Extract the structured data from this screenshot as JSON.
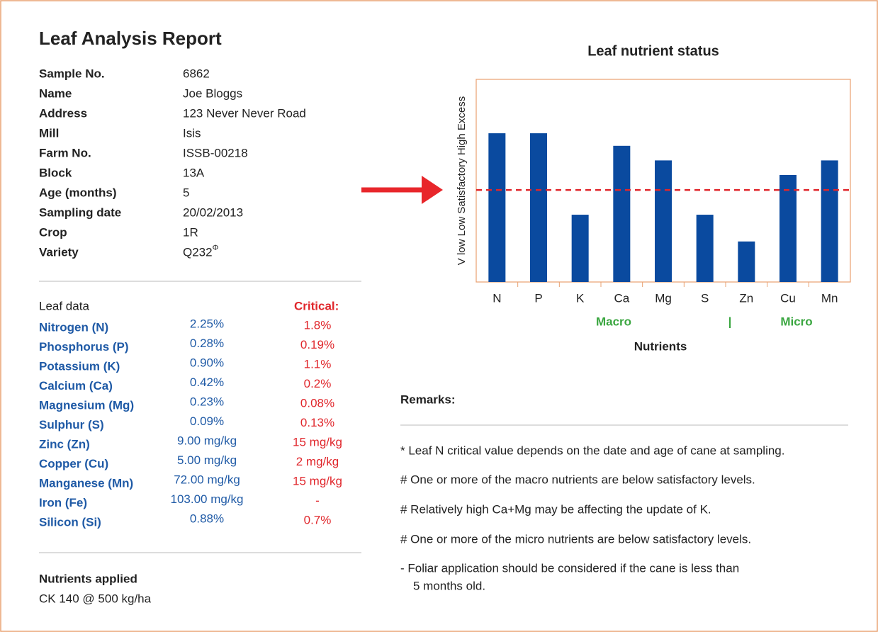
{
  "header": {
    "title": "Leaf Analysis Report"
  },
  "sample": [
    {
      "label": "Sample No.",
      "value": "6862"
    },
    {
      "label": "Name",
      "value": "Joe Bloggs"
    },
    {
      "label": "Address",
      "value": "123 Never Never Road"
    },
    {
      "label": "Mill",
      "value": "Isis"
    },
    {
      "label": "Farm No.",
      "value": "ISSB-00218"
    },
    {
      "label": "Block",
      "value": "13A"
    },
    {
      "label": "Age (months)",
      "value": "5"
    },
    {
      "label": "Sampling date",
      "value": "20/02/2013"
    },
    {
      "label": "Crop",
      "value": "1R"
    },
    {
      "label": "Variety",
      "value": "Q232",
      "superscript": "Φ"
    }
  ],
  "leaf_data": {
    "heading": "Leaf data",
    "critical_heading": "Critical:",
    "rows": [
      [
        "Nitrogen (N)",
        "2.25%",
        "1.8%"
      ],
      [
        "Phosphorus (P)",
        "0.28%",
        "0.19%"
      ],
      [
        "Potassium (K)",
        "0.90%",
        "1.1%"
      ],
      [
        "Calcium (Ca)",
        "0.42%",
        "0.2%"
      ],
      [
        "Magnesium (Mg)",
        "0.23%",
        "0.08%"
      ],
      [
        "Sulphur (S)",
        "0.09%",
        "0.13%"
      ],
      [
        "Zinc (Zn)",
        "9.00 mg/kg",
        "15 mg/kg"
      ],
      [
        "Copper (Cu)",
        "5.00 mg/kg",
        "2 mg/kg"
      ],
      [
        "Manganese (Mn)",
        "72.00 mg/kg",
        "15 mg/kg"
      ],
      [
        "Iron (Fe)",
        "103.00 mg/kg",
        "-"
      ],
      [
        "Silicon (Si)",
        "0.88%",
        "0.7%"
      ]
    ]
  },
  "nutrients_applied": {
    "heading": "Nutrients applied",
    "text": "CK 140 @ 500 kg/ha"
  },
  "remarks": {
    "heading": "Remarks:",
    "items": [
      "* Leaf N critical value depends on the date and age of cane at sampling.",
      "# One or more of the macro nutrients are below satisfactory levels.",
      "# Relatively high Ca+Mg may be affecting the update of K.",
      "# One or more of the micro nutrients are below satisfactory levels.",
      "- Foliar application should be considered if the cane is less than",
      "5 months old."
    ]
  },
  "chart_data": {
    "type": "bar",
    "title": "Leaf nutrient status",
    "y_label": "V low Low Satisfactory High Excess",
    "x_label": "Nutrients",
    "groups": [
      "Macro",
      "|",
      "Micro"
    ],
    "categories": [
      "N",
      "P",
      "K",
      "Ca",
      "Mg",
      "S",
      "Zn",
      "Cu",
      "Mn"
    ],
    "values": [
      3.67,
      3.67,
      1.66,
      3.36,
      3.0,
      1.66,
      1.0,
      2.64,
      3.0
    ],
    "threshold": 2.27,
    "ylim": [
      0,
      5
    ],
    "color": "#0a4a9f",
    "threshold_color": "#e0262b"
  }
}
